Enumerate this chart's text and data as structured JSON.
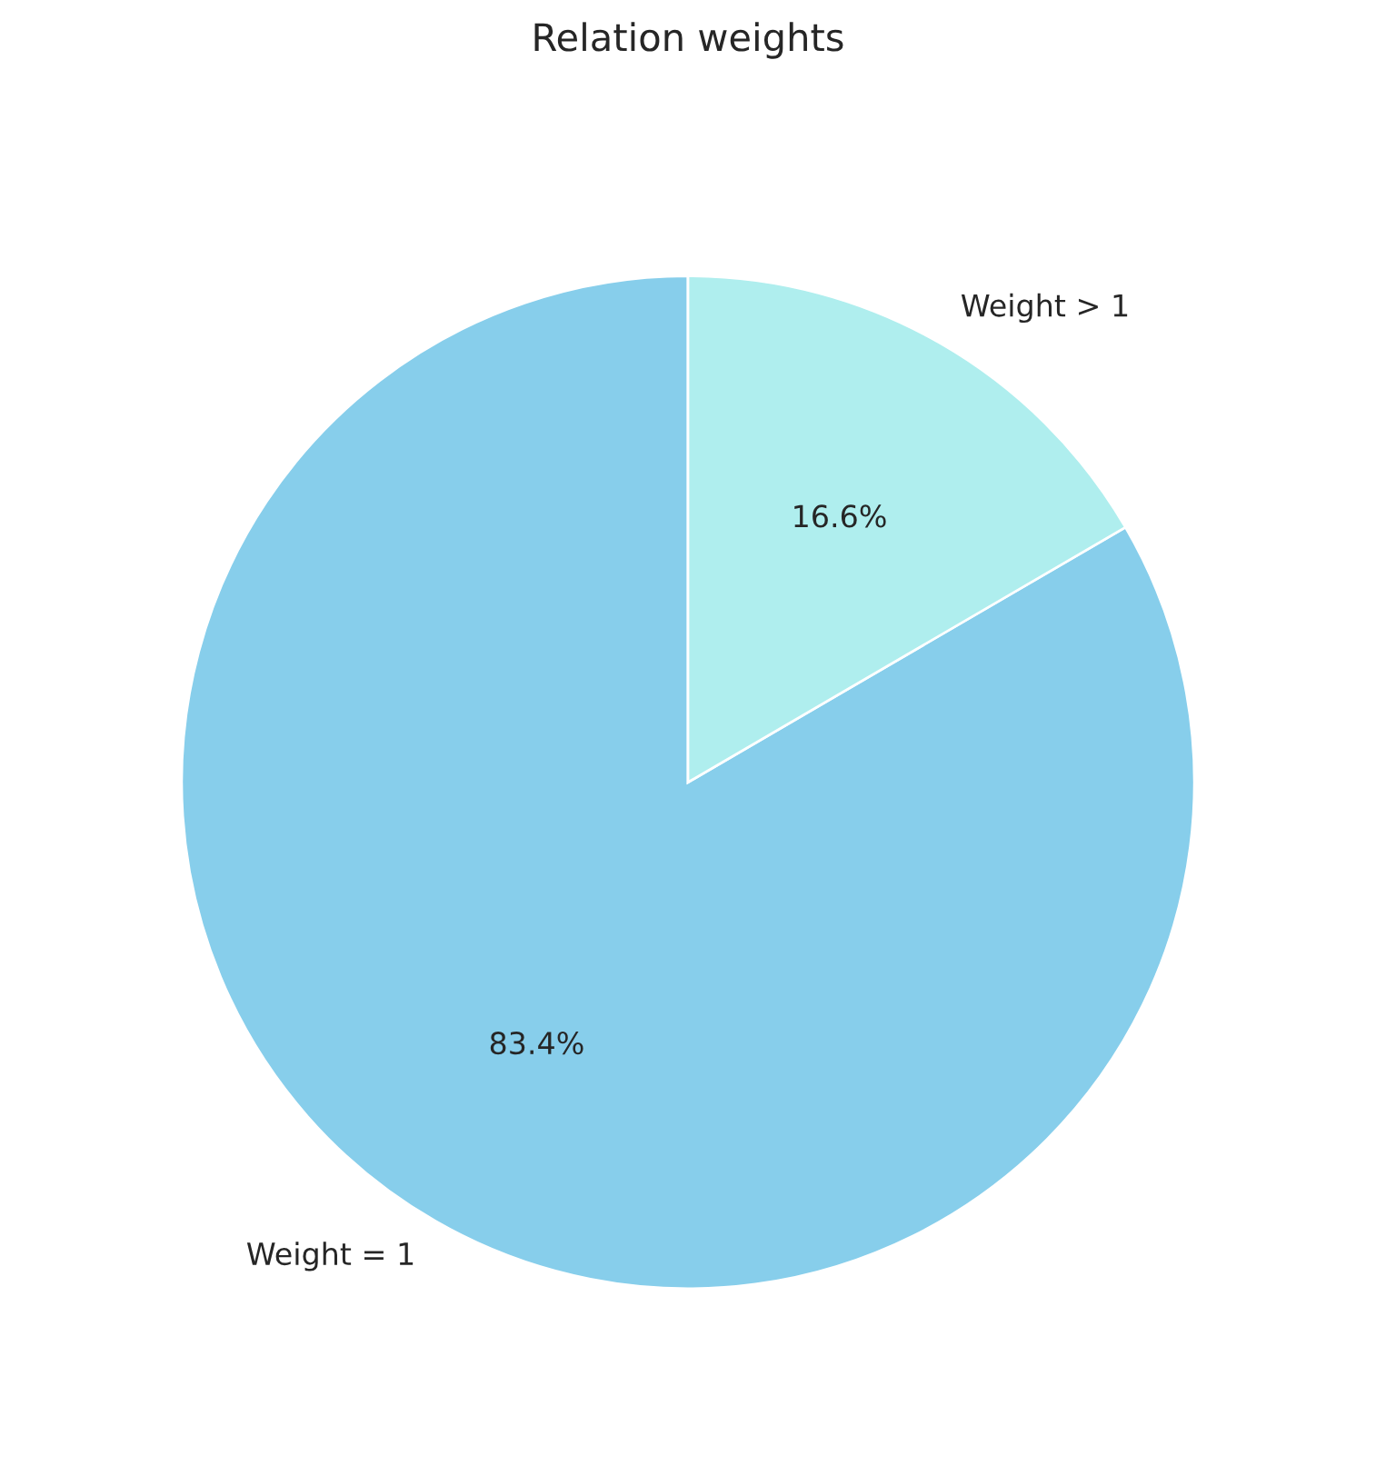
{
  "chart_data": {
    "type": "pie",
    "title": "Relation weights",
    "categories": [
      "Weight = 1",
      "Weight > 1"
    ],
    "values": [
      83.4,
      16.6
    ],
    "colors": [
      "#87ceeb",
      "#afeeee"
    ],
    "value_labels": [
      "83.4%",
      "16.6%"
    ]
  }
}
